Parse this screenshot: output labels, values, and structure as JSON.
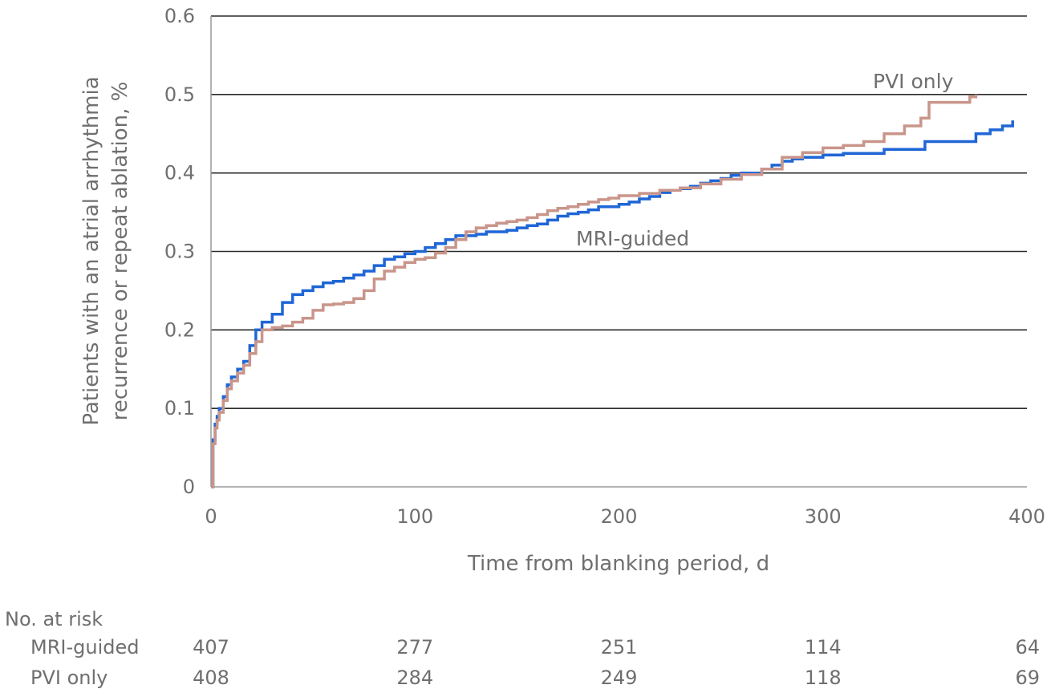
{
  "chart_data": {
    "type": "line",
    "step": true,
    "xlabel": "Time from blanking period, d",
    "ylabel_lines": [
      "Patients with an atrial arrhythmia",
      "recurrence or repeat ablation, %"
    ],
    "xlim": [
      0,
      400
    ],
    "ylim": [
      0,
      0.6
    ],
    "x_ticks": [
      0,
      100,
      200,
      300,
      400
    ],
    "y_ticks": [
      0,
      0.1,
      0.2,
      0.3,
      0.4,
      0.5,
      0.6
    ],
    "x_tick_labels": [
      "0",
      "100",
      "200",
      "300",
      "400"
    ],
    "y_tick_labels": [
      "0",
      "0.1",
      "0.2",
      "0.3",
      "0.4",
      "0.5",
      "0.6"
    ],
    "grid": "horizontal",
    "series": [
      {
        "name": "MRI-guided",
        "color": "#1f66d6",
        "x": [
          0,
          1,
          2,
          3,
          4,
          6,
          8,
          10,
          13,
          16,
          19,
          22,
          25,
          30,
          35,
          40,
          45,
          50,
          55,
          60,
          65,
          70,
          75,
          80,
          85,
          90,
          95,
          100,
          105,
          110,
          115,
          120,
          125,
          130,
          135,
          140,
          145,
          150,
          155,
          160,
          165,
          170,
          175,
          180,
          185,
          190,
          195,
          200,
          205,
          210,
          215,
          220,
          225,
          230,
          235,
          240,
          245,
          250,
          255,
          260,
          265,
          270,
          275,
          280,
          285,
          290,
          300,
          310,
          330,
          350,
          375,
          382,
          388,
          393
        ],
        "y": [
          0,
          0.06,
          0.08,
          0.09,
          0.1,
          0.115,
          0.13,
          0.14,
          0.15,
          0.16,
          0.18,
          0.2,
          0.21,
          0.22,
          0.235,
          0.245,
          0.25,
          0.255,
          0.26,
          0.262,
          0.266,
          0.27,
          0.275,
          0.282,
          0.29,
          0.293,
          0.297,
          0.3,
          0.305,
          0.31,
          0.315,
          0.32,
          0.32,
          0.322,
          0.325,
          0.325,
          0.327,
          0.33,
          0.333,
          0.335,
          0.34,
          0.345,
          0.348,
          0.35,
          0.353,
          0.357,
          0.357,
          0.36,
          0.363,
          0.367,
          0.37,
          0.375,
          0.378,
          0.38,
          0.383,
          0.387,
          0.39,
          0.393,
          0.397,
          0.4,
          0.4,
          0.405,
          0.41,
          0.415,
          0.418,
          0.42,
          0.423,
          0.425,
          0.43,
          0.44,
          0.45,
          0.455,
          0.46,
          0.467
        ]
      },
      {
        "name": "PVI only",
        "color": "#c9958a",
        "x": [
          0,
          1,
          2,
          3,
          4,
          6,
          8,
          10,
          13,
          16,
          19,
          22,
          25,
          30,
          35,
          40,
          45,
          50,
          55,
          60,
          65,
          70,
          75,
          80,
          85,
          90,
          95,
          100,
          105,
          110,
          115,
          120,
          125,
          130,
          135,
          140,
          145,
          150,
          155,
          160,
          165,
          170,
          175,
          180,
          185,
          190,
          195,
          200,
          210,
          220,
          230,
          240,
          250,
          260,
          270,
          280,
          290,
          300,
          310,
          320,
          330,
          340,
          348,
          352,
          360,
          368,
          372,
          375
        ],
        "y": [
          0,
          0.055,
          0.075,
          0.085,
          0.095,
          0.11,
          0.125,
          0.135,
          0.145,
          0.155,
          0.17,
          0.185,
          0.2,
          0.203,
          0.205,
          0.21,
          0.215,
          0.225,
          0.232,
          0.233,
          0.235,
          0.24,
          0.25,
          0.265,
          0.275,
          0.28,
          0.286,
          0.29,
          0.292,
          0.298,
          0.305,
          0.315,
          0.325,
          0.33,
          0.333,
          0.336,
          0.338,
          0.34,
          0.343,
          0.347,
          0.352,
          0.355,
          0.357,
          0.36,
          0.363,
          0.366,
          0.368,
          0.371,
          0.374,
          0.378,
          0.381,
          0.386,
          0.392,
          0.398,
          0.405,
          0.42,
          0.426,
          0.432,
          0.435,
          0.44,
          0.45,
          0.46,
          0.47,
          0.49,
          0.49,
          0.49,
          0.497,
          0.5
        ]
      }
    ],
    "annotations": [
      {
        "text": "PVI only",
        "series": "PVI only"
      },
      {
        "text": "MRI-guided",
        "series": "MRI-guided"
      }
    ],
    "risk_table": {
      "title": "No. at risk",
      "rows": [
        {
          "name": "MRI-guided",
          "values": [
            "407",
            "277",
            "251",
            "114",
            "64"
          ]
        },
        {
          "name": "PVI only",
          "values": [
            "408",
            "284",
            "249",
            "118",
            "69"
          ]
        }
      ]
    }
  }
}
